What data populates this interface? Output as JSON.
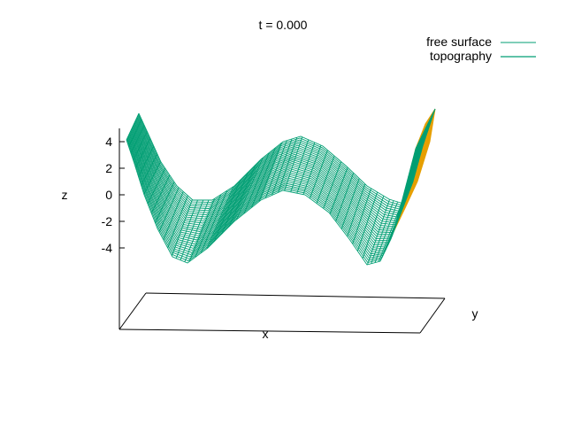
{
  "chart_data": {
    "type": "surface3d",
    "title": "t = 0.000",
    "xlabel": "x",
    "ylabel": "y",
    "zlabel": "z",
    "z_ticks": [
      "4",
      "2",
      "0",
      "-2",
      "-4"
    ],
    "z_tick_values": [
      4,
      2,
      0,
      -2,
      -4
    ],
    "legend_position": "top-right",
    "series": [
      {
        "name": "free surface",
        "color": "#009e73",
        "style": "thin-line"
      },
      {
        "name": "topography",
        "color": "#009e73",
        "style": "thick-line"
      }
    ],
    "surface_shape": "two-trough wave along x, constant along y; z ranges from about -5 to about 4.5",
    "colors": {
      "mesh": "#009e73",
      "underside": "#e69f00",
      "axis": "#000000"
    }
  }
}
